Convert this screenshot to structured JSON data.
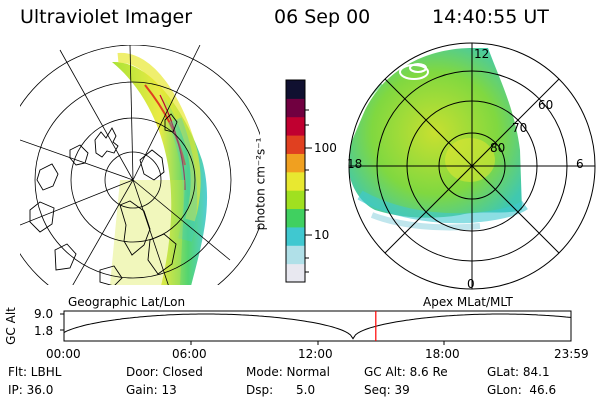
{
  "header": {
    "instrument": "Ultraviolet Imager",
    "date": "06 Sep 00",
    "time": "14:40:55 UT"
  },
  "colorbar": {
    "unit_label": "photon cm⁻²s⁻¹",
    "ticks": [
      "100",
      "10"
    ],
    "colors": [
      "#e8e8f0",
      "#b0e0e8",
      "#40c8d0",
      "#40d060",
      "#a0e020",
      "#e8e830",
      "#f0a020",
      "#e04020",
      "#c00030",
      "#700040",
      "#101030"
    ]
  },
  "left_map": {
    "label": "Geographic Lat/Lon"
  },
  "right_map": {
    "label": "Apex MLat/MLT",
    "mlat_labels": [
      "60",
      "70",
      "80"
    ],
    "mlt_labels": [
      "12",
      "18",
      "6",
      "0"
    ]
  },
  "orbit_plot": {
    "axis_label": "GC Alt",
    "y_ticks": [
      "9.0",
      "1.8"
    ],
    "x_ticks": [
      "00:00",
      "06:00",
      "12:00",
      "18:00",
      "23:59"
    ],
    "current_time_fraction": 0.615,
    "marker_color": "#ff0000"
  },
  "footer": {
    "flt": "Flt: LBHL",
    "door": "Door: Closed",
    "mode": "Mode: Normal",
    "gc_alt": "GC Alt: 8.6 Re",
    "glat": "GLat:  84.1",
    "ip": "IP: 36.0",
    "gain": "Gain: 13",
    "dsp": "Dsp:      5.0",
    "seq": "Seq: 39",
    "glon": "GLon:  46.6"
  }
}
